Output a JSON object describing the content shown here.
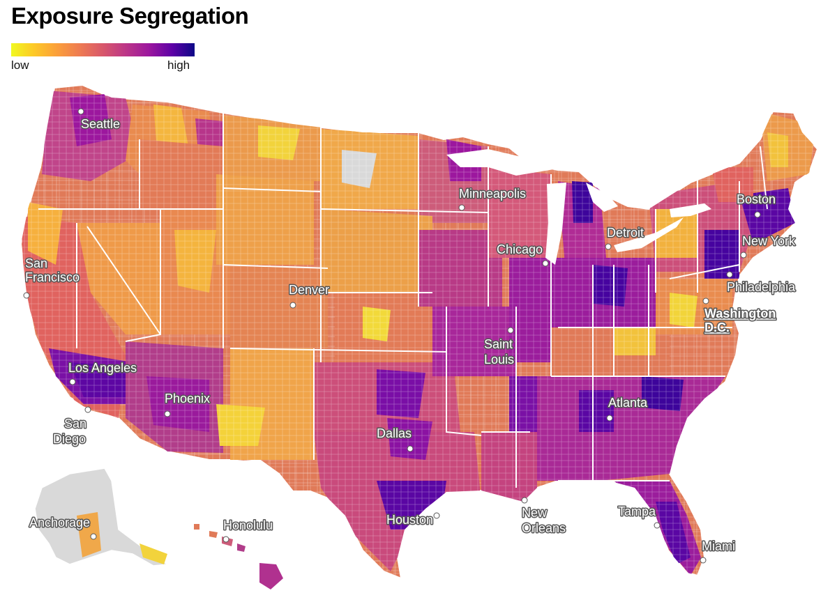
{
  "title": "Exposure Segregation",
  "legend": {
    "low_label": "low",
    "high_label": "high",
    "gradient": [
      "#f0f921",
      "#fdca26",
      "#fb9f3a",
      "#ed7953",
      "#d8576b",
      "#bd3786",
      "#9c179e",
      "#7201a8",
      "#46039f",
      "#0d0887"
    ],
    "no_data_color": "#d9d9d9"
  },
  "cities": [
    {
      "name": "Seattle"
    },
    {
      "name": "San Francisco"
    },
    {
      "name": "Los Angeles"
    },
    {
      "name": "San Diego"
    },
    {
      "name": "Phoenix"
    },
    {
      "name": "Denver"
    },
    {
      "name": "Dallas"
    },
    {
      "name": "Houston"
    },
    {
      "name": "Minneapolis"
    },
    {
      "name": "Chicago"
    },
    {
      "name": "Saint Louis"
    },
    {
      "name": "Detroit"
    },
    {
      "name": "Boston"
    },
    {
      "name": "New York"
    },
    {
      "name": "Philadelphia"
    },
    {
      "name": "Washington D.C."
    },
    {
      "name": "Atlanta"
    },
    {
      "name": "New Orleans"
    },
    {
      "name": "Tampa"
    },
    {
      "name": "Miami"
    },
    {
      "name": "Anchorage"
    },
    {
      "name": "Honolulu"
    }
  ]
}
